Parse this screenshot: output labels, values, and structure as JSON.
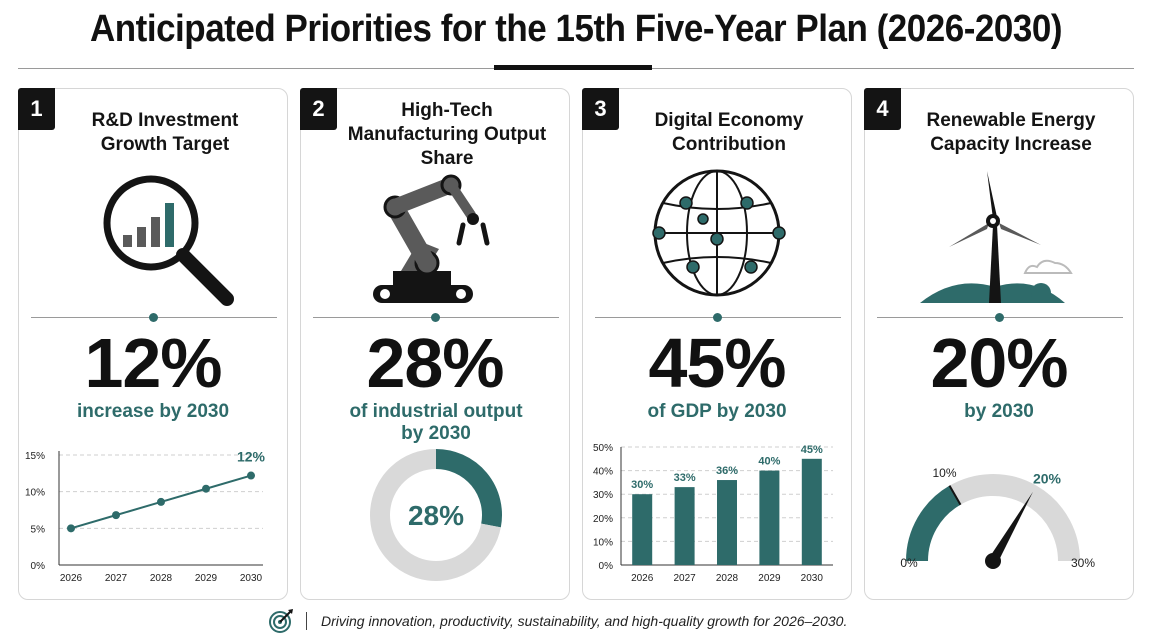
{
  "title": "Anticipated Priorities for the 15th Five-Year Plan (2026-2030)",
  "colors": {
    "accent": "#2e6b6a",
    "dark": "#141414",
    "grey": "#5a5a5a",
    "light": "#d9d9d9"
  },
  "cards": [
    {
      "number": "1",
      "title": "R&D Investment Growth Target",
      "icon": "magnifier-bar-chart-icon",
      "value": "12%",
      "subtitle": "increase by 2030"
    },
    {
      "number": "2",
      "title": "High-Tech Manufacturing Output Share",
      "icon": "robot-arm-icon",
      "value": "28%",
      "subtitle": "of industrial output by 2030"
    },
    {
      "number": "3",
      "title": "Digital Economy Contribution",
      "icon": "network-globe-icon",
      "value": "45%",
      "subtitle": "of GDP by 2030"
    },
    {
      "number": "4",
      "title": "Renewable Energy Capacity Increase",
      "icon": "wind-turbine-icon",
      "value": "20%",
      "subtitle": "by 2030"
    }
  ],
  "chart_data": [
    {
      "type": "line",
      "x": [
        "2026",
        "2027",
        "2028",
        "2029",
        "2030"
      ],
      "series": [
        {
          "values": [
            5,
            6.8,
            8.6,
            10.4,
            12.2
          ]
        }
      ],
      "yticks": [
        "0%",
        "5%",
        "10%",
        "15%"
      ],
      "ylim": [
        0,
        15
      ],
      "end_label": "12%",
      "grid": true
    },
    {
      "type": "pie",
      "variant": "donut",
      "values": [
        28,
        72
      ],
      "center_label": "28%"
    },
    {
      "type": "bar",
      "categories": [
        "2026",
        "2027",
        "2028",
        "2029",
        "2030"
      ],
      "values": [
        30,
        33,
        36,
        40,
        45
      ],
      "labels": [
        "30%",
        "33%",
        "36%",
        "40%",
        "45%"
      ],
      "yticks": [
        "0%",
        "10%",
        "20%",
        "30%",
        "40%",
        "50%"
      ],
      "ylim": [
        0,
        50
      ],
      "grid": true
    },
    {
      "type": "gauge",
      "min_label": "0%",
      "max_label": "30%",
      "mark_label": "10%",
      "value_label": "20%",
      "range": [
        0,
        30
      ],
      "baseline": 10,
      "value": 20
    }
  ],
  "footer": {
    "icon": "target-arrow-icon",
    "text": "Driving innovation, productivity, sustainability, and high-quality growth for 2026–2030."
  }
}
